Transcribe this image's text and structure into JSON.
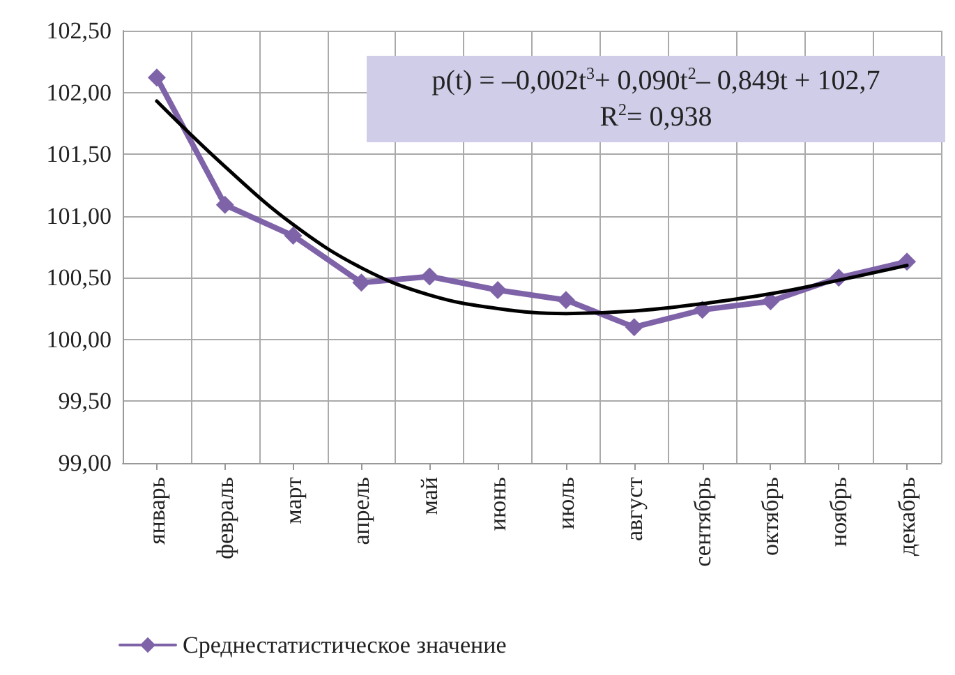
{
  "chart_data": {
    "type": "line",
    "categories": [
      "январь",
      "февраль",
      "март",
      "апрель",
      "май",
      "июнь",
      "июль",
      "август",
      "сентябрь",
      "октябрь",
      "ноябрь",
      "декабрь"
    ],
    "series": [
      {
        "name": "Среднестатистическое значение",
        "color": "#7f63a8",
        "values": [
          102.12,
          101.09,
          100.84,
          100.46,
          100.51,
          100.4,
          100.32,
          100.1,
          100.24,
          100.31,
          100.5,
          100.63
        ],
        "marker": "diamond"
      },
      {
        "type": "line",
        "color": "#000000",
        "values": [
          101.93,
          101.4,
          100.93,
          100.58,
          100.36,
          100.25,
          100.21,
          100.23,
          100.29,
          100.37,
          100.48,
          100.6
        ],
        "marker": "none"
      }
    ],
    "ylim": [
      99,
      102.5
    ],
    "yticks": [
      {
        "value": 99,
        "label": "99,00"
      },
      {
        "value": 99.5,
        "label": "99,50"
      },
      {
        "value": 100,
        "label": "100,00"
      },
      {
        "value": 100.5,
        "label": "100,50"
      },
      {
        "value": 101,
        "label": "101,00"
      },
      {
        "value": 101.5,
        "label": "101,50"
      },
      {
        "value": 102,
        "label": "102,00"
      },
      {
        "value": 102.5,
        "label": "102,50"
      }
    ],
    "annotations": [
      "p(t) = –0,002t$^{3}$+ 0,090t$^{2}$– 0,849t + 102,7",
      "R$^{2}$= 0,938"
    ],
    "grid": true,
    "legend": "bottom left",
    "line_style": "solid"
  }
}
